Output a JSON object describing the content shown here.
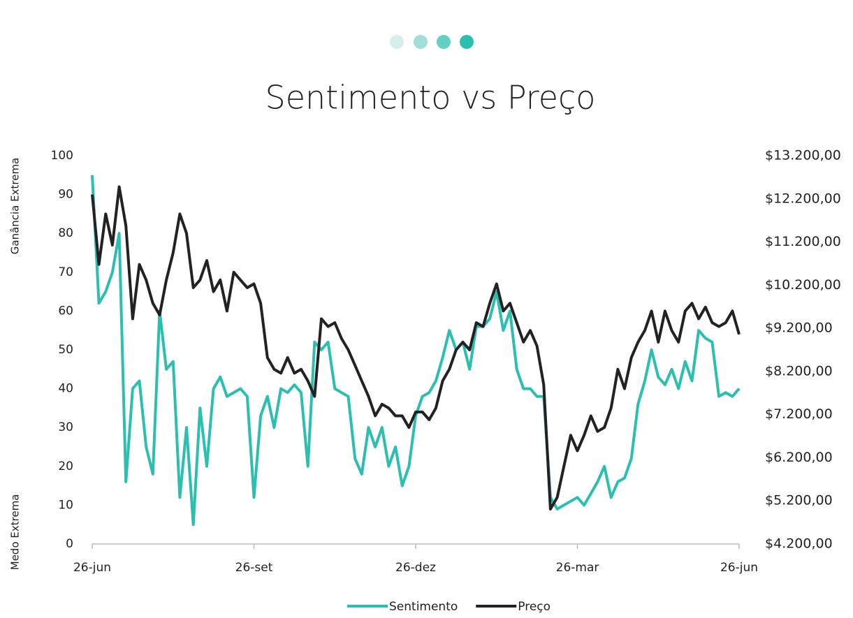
{
  "chart_data": {
    "type": "line",
    "title": "Sentimento vs Preço",
    "y_label_top": "Ganância Extrema",
    "y_label_bottom": "Medo Extrema",
    "categories": [
      "26-jun",
      null,
      null,
      null,
      null,
      null,
      null,
      null,
      null,
      null,
      null,
      null,
      null,
      null,
      null,
      null,
      null,
      null,
      null,
      null,
      null,
      null,
      null,
      null,
      "26-set",
      null,
      null,
      null,
      null,
      null,
      null,
      null,
      null,
      null,
      null,
      null,
      null,
      null,
      null,
      null,
      null,
      null,
      null,
      null,
      null,
      null,
      null,
      null,
      "26-dez",
      null,
      null,
      null,
      null,
      null,
      null,
      null,
      null,
      null,
      null,
      null,
      null,
      null,
      null,
      null,
      null,
      null,
      null,
      null,
      null,
      null,
      null,
      null,
      "26-mar",
      null,
      null,
      null,
      null,
      null,
      null,
      null,
      null,
      null,
      null,
      null,
      null,
      null,
      null,
      null,
      null,
      null,
      null,
      null,
      null,
      null,
      null,
      null,
      "26-jun"
    ],
    "series": [
      {
        "name": "Sentimento",
        "color": "#2bbfaf",
        "values": [
          95,
          62,
          65,
          70,
          80,
          16,
          40,
          42,
          25,
          18,
          60,
          45,
          47,
          12,
          30,
          5,
          35,
          20,
          40,
          43,
          38,
          39,
          40,
          38,
          12,
          33,
          38,
          30,
          40,
          39,
          41,
          39,
          20,
          52,
          50,
          52,
          40,
          39,
          38,
          22,
          18,
          30,
          25,
          30,
          20,
          25,
          15,
          20,
          33,
          38,
          39,
          42,
          48,
          55,
          50,
          52,
          45,
          56,
          56,
          58,
          65,
          55,
          60,
          45,
          40,
          40,
          38,
          38,
          12,
          9,
          10,
          11,
          12,
          10,
          13,
          16,
          20,
          12,
          16,
          17,
          22,
          36,
          42,
          50,
          43,
          41,
          45,
          40,
          47,
          42,
          55,
          53,
          52,
          38,
          39,
          38,
          40
        ]
      },
      {
        "name": "Preço",
        "color": "#222222",
        "axis": "y2",
        "values": [
          12300,
          10680,
          11850,
          11130,
          12480,
          11580,
          9420,
          10680,
          10320,
          9780,
          9510,
          10320,
          10950,
          11850,
          11400,
          10140,
          10320,
          10770,
          10050,
          10320,
          9600,
          10500,
          10320,
          10140,
          10230,
          9780,
          8520,
          8250,
          8160,
          8520,
          8160,
          8250,
          7980,
          7620,
          9420,
          9240,
          9330,
          8960,
          8700,
          8340,
          7980,
          7620,
          7170,
          7440,
          7350,
          7170,
          7170,
          6900,
          7260,
          7260,
          7080,
          7350,
          7980,
          8250,
          8700,
          8880,
          8700,
          9330,
          9240,
          9780,
          10230,
          9600,
          9780,
          9330,
          8880,
          9150,
          8790,
          7890,
          5010,
          5280,
          6000,
          6720,
          6360,
          6720,
          7170,
          6810,
          6900,
          7350,
          8250,
          7800,
          8520,
          8880,
          9150,
          9600,
          8880,
          9600,
          9150,
          8880,
          9600,
          9780,
          9420,
          9690,
          9330,
          9240,
          9330,
          9600,
          9060
        ]
      }
    ],
    "ylim": [
      0,
      100
    ],
    "yticks": [
      0,
      10,
      20,
      30,
      40,
      50,
      60,
      70,
      80,
      90,
      100
    ],
    "y2lim": [
      4200,
      13200
    ],
    "y2ticks": [
      {
        "value": 4200,
        "label": "$4.200,00"
      },
      {
        "value": 5200,
        "label": "$5.200,00"
      },
      {
        "value": 6200,
        "label": "$6.200,00"
      },
      {
        "value": 7200,
        "label": "$7.200,00"
      },
      {
        "value": 8200,
        "label": "$8.200,00"
      },
      {
        "value": 9200,
        "label": "$9.200,00"
      },
      {
        "value": 10200,
        "label": "$10.200,00"
      },
      {
        "value": 11200,
        "label": "$11.200,00"
      },
      {
        "value": 12200,
        "label": "$12.200,00"
      },
      {
        "value": 13200,
        "label": "$13.200,00"
      }
    ],
    "legend": "bottom"
  }
}
